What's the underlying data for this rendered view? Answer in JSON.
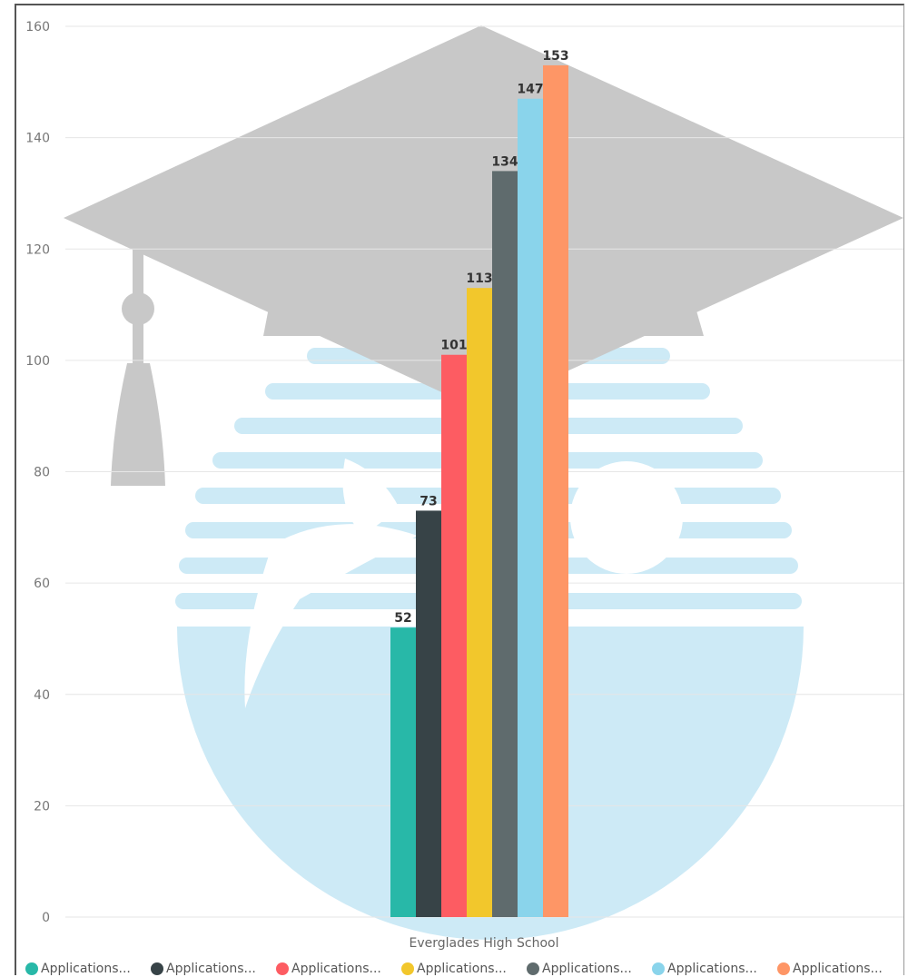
{
  "chart_data": {
    "type": "bar",
    "categories": [
      "Everglades High School"
    ],
    "series": [
      {
        "name": "Applications...",
        "values": [
          52
        ],
        "color": "#28b8a8"
      },
      {
        "name": "Applications...",
        "values": [
          73
        ],
        "color": "#374347"
      },
      {
        "name": "Applications...",
        "values": [
          101
        ],
        "color": "#fd5c62"
      },
      {
        "name": "Applications...",
        "values": [
          113
        ],
        "color": "#f2c72c"
      },
      {
        "name": "Applications...",
        "values": [
          134
        ],
        "color": "#5f6b6d"
      },
      {
        "name": "Applications...",
        "values": [
          147
        ],
        "color": "#8ad4eb"
      },
      {
        "name": "Applications...",
        "values": [
          153
        ],
        "color": "#fe9666"
      }
    ],
    "y_ticks": [
      "0",
      "20",
      "40",
      "60",
      "80",
      "100",
      "120",
      "140",
      "160"
    ],
    "ylim": [
      0,
      160
    ],
    "grid": true,
    "legend_position": "bottom",
    "data_labels": [
      "52",
      "73",
      "101",
      "113",
      "134",
      "147",
      "153"
    ]
  },
  "background_image": "graduation-cap-over-orange-logo-watermark"
}
